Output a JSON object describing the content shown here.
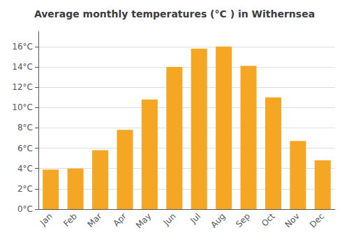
{
  "chart_data": {
    "type": "bar",
    "title": "Average monthly temperatures (°C ) in Withernsea",
    "categories": [
      "Jan",
      "Feb",
      "Mar",
      "Apr",
      "May",
      "Jun",
      "Jul",
      "Aug",
      "Sep",
      "Oct",
      "Nov",
      "Dec"
    ],
    "values": [
      3.9,
      4.0,
      5.8,
      7.8,
      10.8,
      14.0,
      15.8,
      16.0,
      14.1,
      11.0,
      6.7,
      4.8
    ],
    "color": "#F5A623",
    "ylim": [
      0,
      17.5
    ],
    "yticks": [
      {
        "value": 0,
        "label": "0°C"
      },
      {
        "value": 2,
        "label": "2°C"
      },
      {
        "value": 4,
        "label": "4°C"
      },
      {
        "value": 6,
        "label": "6°C"
      },
      {
        "value": 8,
        "label": "8°C"
      },
      {
        "value": 10,
        "label": "10°C"
      },
      {
        "value": 12,
        "label": "12°C"
      },
      {
        "value": 14,
        "label": "14°C"
      },
      {
        "value": 16,
        "label": "16°C"
      }
    ],
    "grid": true
  }
}
